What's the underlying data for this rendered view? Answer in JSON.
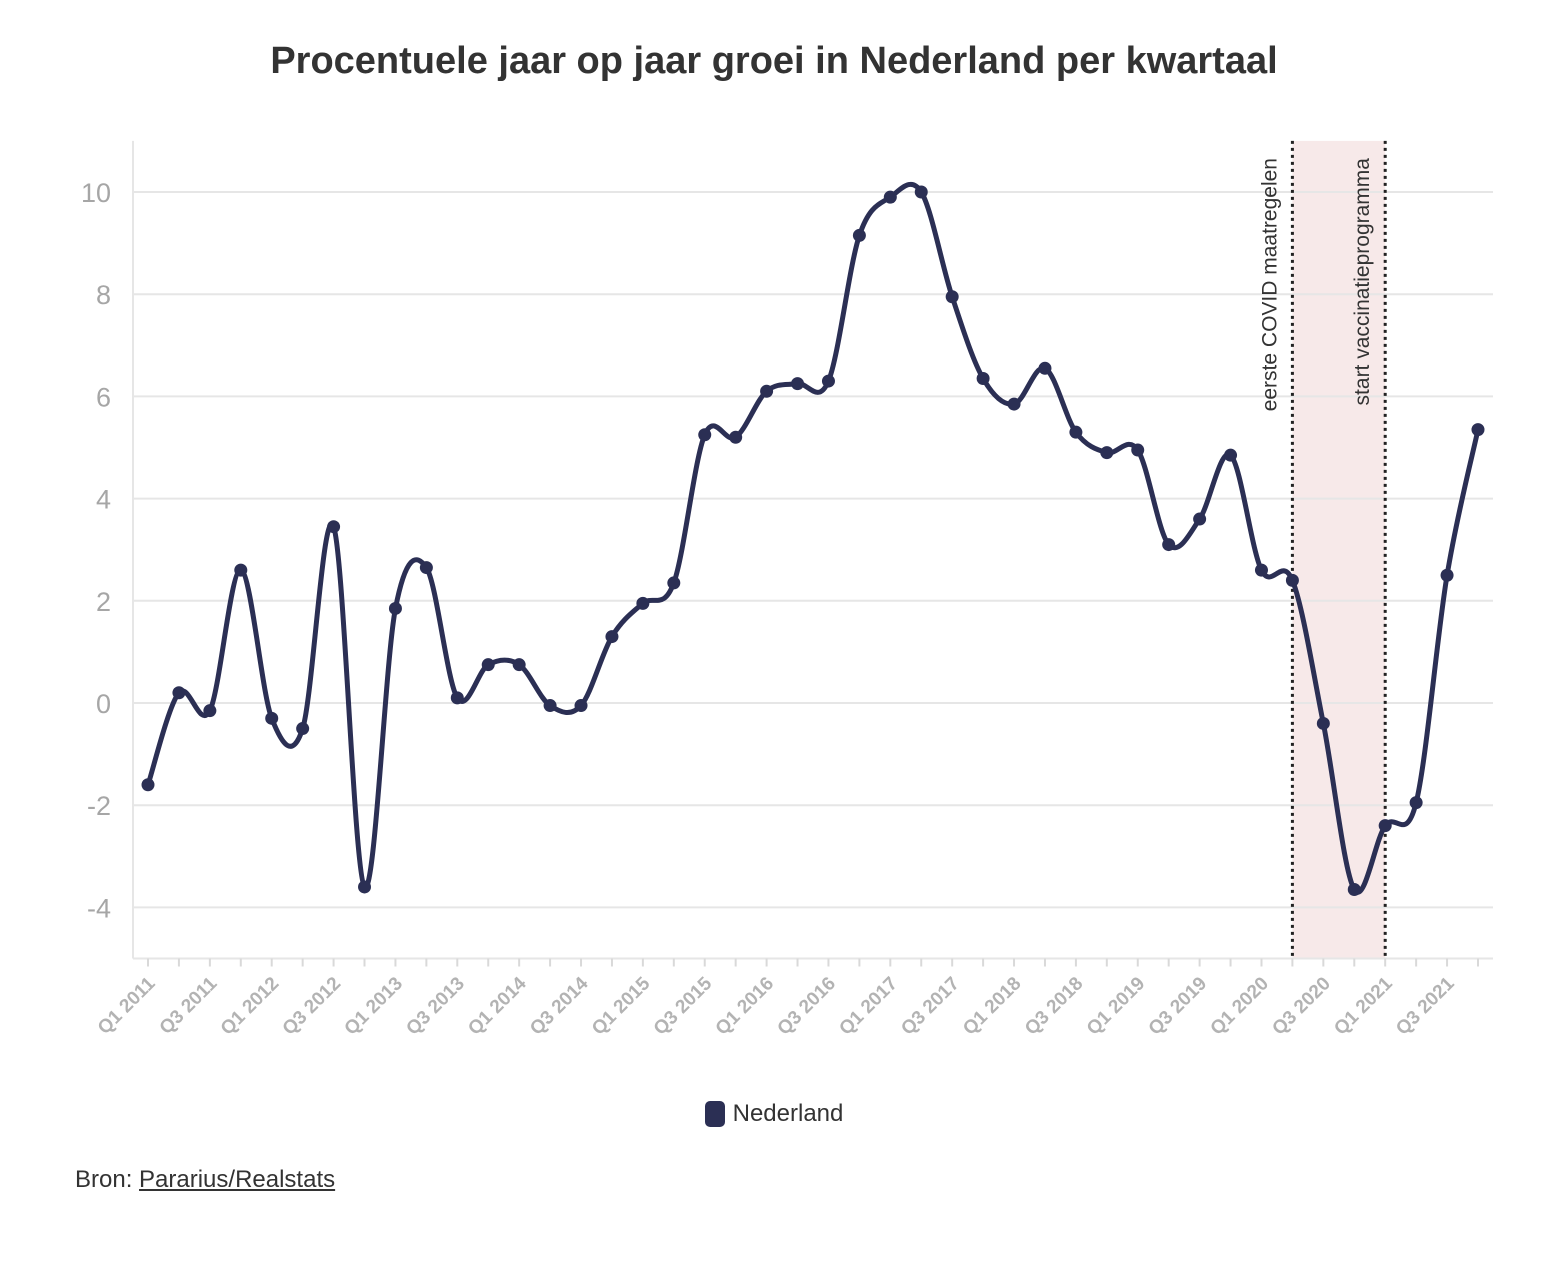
{
  "chart_data": {
    "type": "line",
    "title": "Procentuele jaar op jaar groei in Nederland per kwartaal",
    "xlabel": "",
    "ylabel": "",
    "ylim": [
      -5,
      11
    ],
    "yticks": [
      -4,
      -2,
      0,
      2,
      4,
      6,
      8,
      10
    ],
    "grid": true,
    "legend_position": "bottom",
    "categories": [
      "Q1 2011",
      "Q2 2011",
      "Q3 2011",
      "Q4 2011",
      "Q1 2012",
      "Q2 2012",
      "Q3 2012",
      "Q4 2012",
      "Q1 2013",
      "Q2 2013",
      "Q3 2013",
      "Q4 2013",
      "Q1 2014",
      "Q2 2014",
      "Q3 2014",
      "Q4 2014",
      "Q1 2015",
      "Q2 2015",
      "Q3 2015",
      "Q4 2015",
      "Q1 2016",
      "Q2 2016",
      "Q3 2016",
      "Q4 2016",
      "Q1 2017",
      "Q2 2017",
      "Q3 2017",
      "Q4 2017",
      "Q1 2018",
      "Q2 2018",
      "Q3 2018",
      "Q4 2018",
      "Q1 2019",
      "Q2 2019",
      "Q3 2019",
      "Q4 2019",
      "Q1 2020",
      "Q2 2020",
      "Q3 2020",
      "Q4 2020",
      "Q1 2021",
      "Q2 2021",
      "Q3 2021",
      "Q4 2021"
    ],
    "tick_labels": [
      "Q1 2011",
      "Q3 2011",
      "Q1 2012",
      "Q3 2012",
      "Q1 2013",
      "Q3 2013",
      "Q1 2014",
      "Q3 2014",
      "Q1 2015",
      "Q3 2015",
      "Q1 2016",
      "Q3 2016",
      "Q1 2017",
      "Q3 2017",
      "Q1 2018",
      "Q3 2018",
      "Q1 2019",
      "Q3 2019",
      "Q1 2020",
      "Q3 2020",
      "Q1 2021",
      "Q3 2021"
    ],
    "series": [
      {
        "name": "Nederland",
        "color": "#2b2f54",
        "values": [
          -1.6,
          0.2,
          -0.15,
          2.6,
          -0.3,
          -0.5,
          3.45,
          -3.6,
          1.85,
          2.65,
          0.1,
          0.75,
          0.75,
          -0.05,
          -0.05,
          1.3,
          1.95,
          2.35,
          5.25,
          5.2,
          6.1,
          6.25,
          6.3,
          9.15,
          9.9,
          10.0,
          7.95,
          6.35,
          5.85,
          6.55,
          5.3,
          4.9,
          4.95,
          3.1,
          3.6,
          4.85,
          2.6,
          2.4,
          -0.4,
          -3.65,
          -2.4,
          -1.95,
          2.5,
          5.35
        ]
      }
    ],
    "shaded_region": {
      "from": "Q2 2020",
      "to": "Q1 2021",
      "color": "#f7e9e9"
    },
    "annotations": [
      {
        "category": "Q2 2020",
        "text": "eerste COVID maatregelen"
      },
      {
        "category": "Q1 2021",
        "text": "start vaccinatieprogramma"
      }
    ]
  },
  "source": {
    "prefix": "Bron: ",
    "link_text": "Pararius/Realstats"
  }
}
